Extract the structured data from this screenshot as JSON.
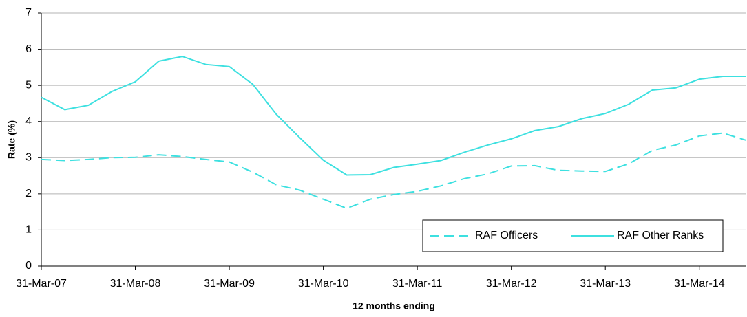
{
  "chart_data": {
    "type": "line",
    "y_label": "Rate (%)",
    "x_label": "12 months ending",
    "categories": [
      "31-Mar-07",
      null,
      null,
      null,
      "31-Mar-08",
      null,
      null,
      null,
      "31-Mar-09",
      null,
      null,
      null,
      "31-Mar-10",
      null,
      null,
      null,
      "31-Mar-11",
      null,
      null,
      null,
      "31-Mar-12",
      null,
      null,
      null,
      "31-Mar-13",
      null,
      null,
      null,
      "31-Mar-14",
      null,
      null
    ],
    "series": [
      {
        "name": "RAF Officers",
        "color": "#3de0e0",
        "dash": true,
        "values": [
          2.95,
          2.92,
          2.95,
          3.0,
          3.01,
          3.08,
          3.03,
          2.95,
          2.88,
          2.6,
          2.25,
          2.1,
          1.85,
          1.6,
          1.85,
          1.98,
          2.07,
          2.22,
          2.42,
          2.55,
          2.77,
          2.78,
          2.65,
          2.63,
          2.62,
          2.83,
          3.2,
          3.35,
          3.6,
          3.68,
          3.48
        ]
      },
      {
        "name": "RAF Other Ranks",
        "color": "#3de0e0",
        "dash": false,
        "values": [
          4.67,
          4.33,
          4.45,
          4.83,
          5.1,
          5.67,
          5.8,
          5.58,
          5.52,
          5.03,
          4.2,
          3.55,
          2.93,
          2.52,
          2.53,
          2.73,
          2.82,
          2.92,
          3.15,
          3.35,
          3.52,
          3.75,
          3.86,
          4.08,
          4.22,
          4.48,
          4.87,
          4.93,
          5.17,
          5.25,
          5.25
        ]
      }
    ],
    "ylim": [
      0,
      7
    ],
    "yticks": [
      0,
      1,
      2,
      3,
      4,
      5,
      6,
      7
    ],
    "grid": true,
    "legend": "lower-right"
  }
}
